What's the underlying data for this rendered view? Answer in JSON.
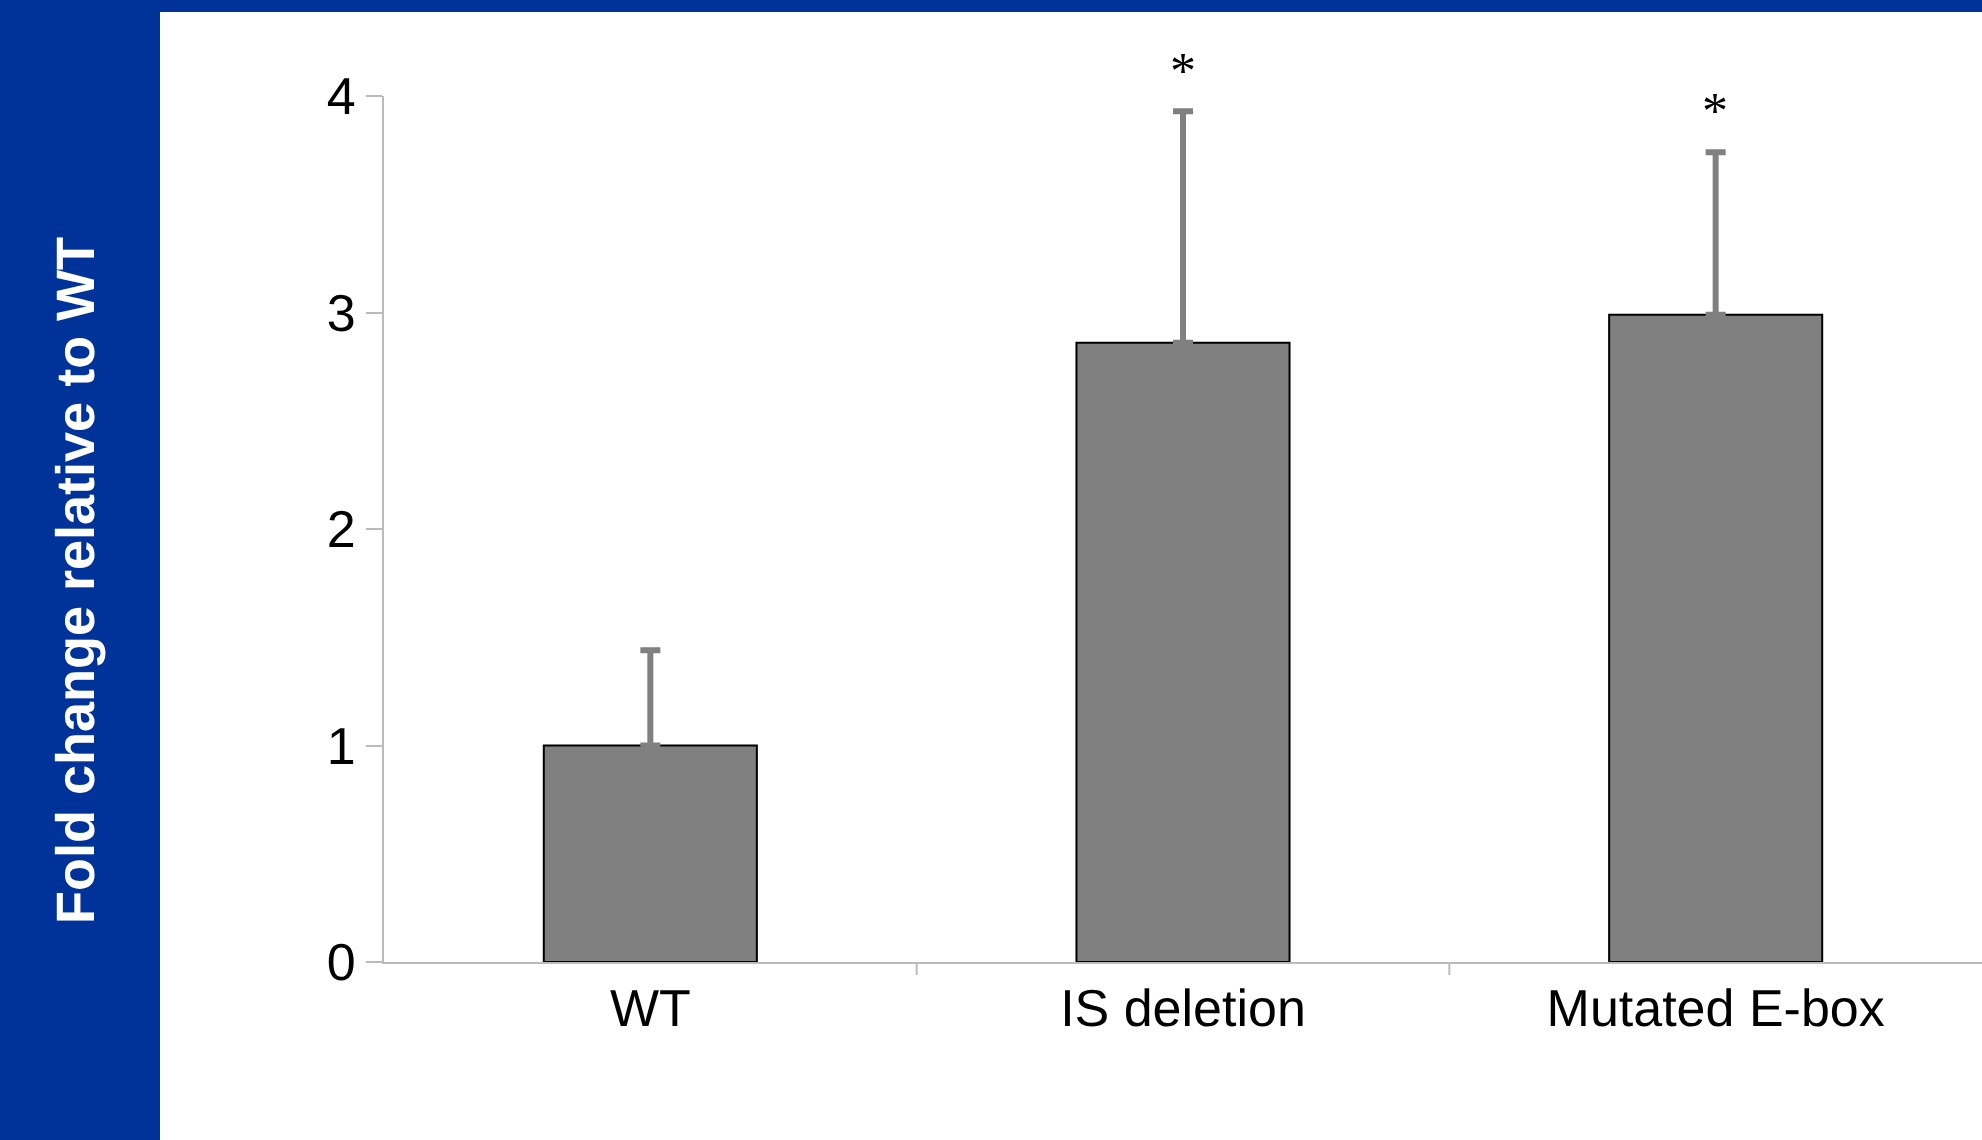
{
  "chart_data": {
    "type": "bar",
    "ylabel": "Fold change relative to WT",
    "categories": [
      "WT",
      "IS deletion",
      "Mutated E-box"
    ],
    "values": [
      1.0,
      2.86,
      2.99
    ],
    "errors": [
      [
        1.0,
        1.44
      ],
      [
        2.86,
        3.93
      ],
      [
        2.99,
        3.74
      ]
    ],
    "color": "#808080",
    "ylim": [
      0,
      4
    ],
    "yticks": [
      0,
      1,
      2,
      3,
      4
    ],
    "grid": false,
    "annotations": [
      "*",
      "*"
    ]
  }
}
